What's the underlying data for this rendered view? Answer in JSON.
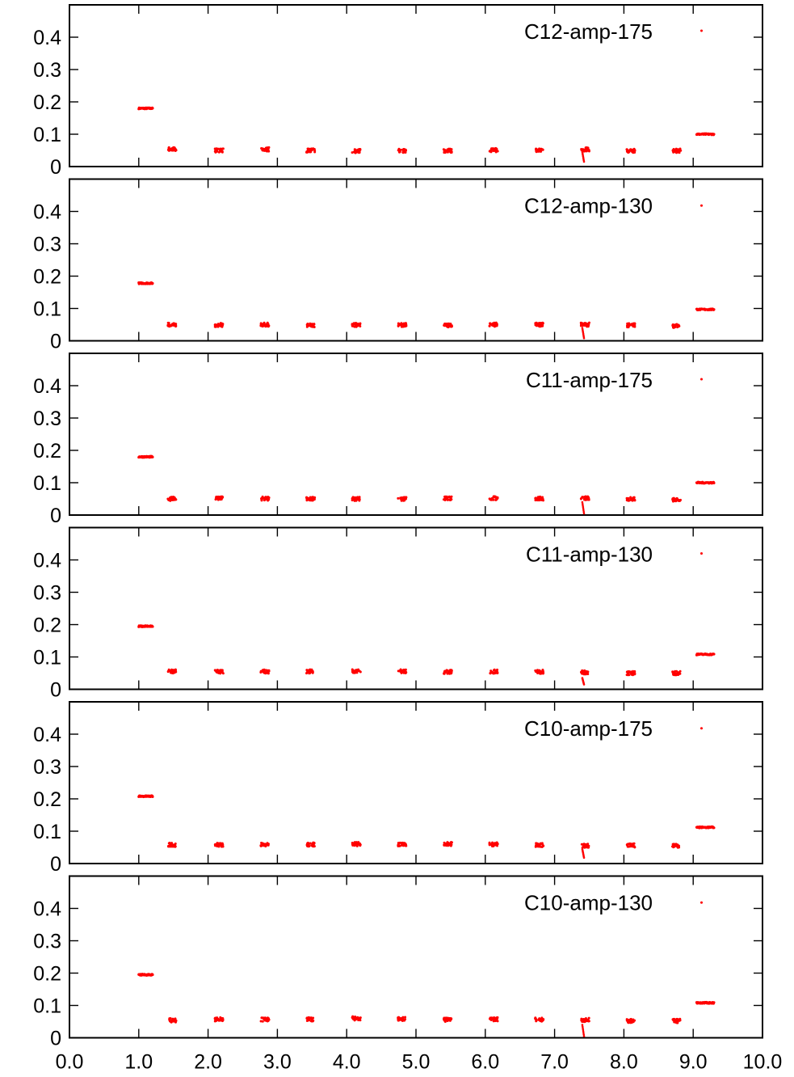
{
  "chart_data": [
    {
      "type": "scatter",
      "label": "C12-amp-175",
      "xlim": [
        0,
        10
      ],
      "ylim": [
        0,
        0.5
      ],
      "yticks": [
        0,
        0.1,
        0.2,
        0.3,
        0.4
      ],
      "ytick_labels": [
        "0",
        "0.1",
        "0.2",
        "0.3",
        "0.4"
      ],
      "marker_color": "#ff0000",
      "clusters": [
        {
          "x_start": 1.0,
          "x_end": 1.2,
          "y": 0.18
        },
        {
          "x": 1.48,
          "y": 0.054
        },
        {
          "x": 2.16,
          "y": 0.05
        },
        {
          "x": 2.82,
          "y": 0.053
        },
        {
          "x": 3.48,
          "y": 0.05
        },
        {
          "x": 4.14,
          "y": 0.048
        },
        {
          "x": 4.8,
          "y": 0.049
        },
        {
          "x": 5.46,
          "y": 0.049
        },
        {
          "x": 6.12,
          "y": 0.051
        },
        {
          "x": 6.78,
          "y": 0.051
        },
        {
          "x": 7.44,
          "y": 0.053
        },
        {
          "x": 8.1,
          "y": 0.049
        },
        {
          "x": 8.76,
          "y": 0.049
        },
        {
          "x_start": 9.05,
          "x_end": 9.3,
          "y": 0.1
        }
      ],
      "drop": {
        "x": 7.4,
        "y_from": 0.045,
        "y_to": 0.015
      },
      "outlier": {
        "x": 9.12,
        "y": 0.42
      }
    },
    {
      "type": "scatter",
      "label": "C12-amp-130",
      "xlim": [
        0,
        10
      ],
      "ylim": [
        0,
        0.5
      ],
      "yticks": [
        0,
        0.1,
        0.2,
        0.3,
        0.4
      ],
      "ytick_labels": [
        "0",
        "0.1",
        "0.2",
        "0.3",
        "0.4"
      ],
      "marker_color": "#ff0000",
      "clusters": [
        {
          "x_start": 1.0,
          "x_end": 1.2,
          "y": 0.178
        },
        {
          "x": 1.48,
          "y": 0.05
        },
        {
          "x": 2.16,
          "y": 0.049
        },
        {
          "x": 2.82,
          "y": 0.05
        },
        {
          "x": 3.48,
          "y": 0.048
        },
        {
          "x": 4.14,
          "y": 0.049
        },
        {
          "x": 4.8,
          "y": 0.049
        },
        {
          "x": 5.46,
          "y": 0.048
        },
        {
          "x": 6.12,
          "y": 0.05
        },
        {
          "x": 6.78,
          "y": 0.05
        },
        {
          "x": 7.44,
          "y": 0.05
        },
        {
          "x": 8.1,
          "y": 0.048
        },
        {
          "x": 8.76,
          "y": 0.046
        },
        {
          "x_start": 9.05,
          "x_end": 9.3,
          "y": 0.097
        }
      ],
      "drop": {
        "x": 7.4,
        "y_from": 0.04,
        "y_to": 0.008
      },
      "outlier": {
        "x": 9.12,
        "y": 0.418
      }
    },
    {
      "type": "scatter",
      "label": "C11-amp-175",
      "xlim": [
        0,
        10
      ],
      "ylim": [
        0,
        0.5
      ],
      "yticks": [
        0,
        0.1,
        0.2,
        0.3,
        0.4
      ],
      "ytick_labels": [
        "0",
        "0.1",
        "0.2",
        "0.3",
        "0.4"
      ],
      "marker_color": "#ff0000",
      "clusters": [
        {
          "x_start": 1.0,
          "x_end": 1.2,
          "y": 0.18
        },
        {
          "x": 1.48,
          "y": 0.05
        },
        {
          "x": 2.16,
          "y": 0.052
        },
        {
          "x": 2.82,
          "y": 0.051
        },
        {
          "x": 3.48,
          "y": 0.05
        },
        {
          "x": 4.14,
          "y": 0.05
        },
        {
          "x": 4.8,
          "y": 0.05
        },
        {
          "x": 5.46,
          "y": 0.052
        },
        {
          "x": 6.12,
          "y": 0.052
        },
        {
          "x": 6.78,
          "y": 0.051
        },
        {
          "x": 7.44,
          "y": 0.052
        },
        {
          "x": 8.1,
          "y": 0.049
        },
        {
          "x": 8.76,
          "y": 0.048
        },
        {
          "x_start": 9.05,
          "x_end": 9.3,
          "y": 0.1
        }
      ],
      "drop": {
        "x": 7.4,
        "y_from": 0.04,
        "y_to": 0.005
      },
      "outlier": {
        "x": 9.12,
        "y": 0.42
      }
    },
    {
      "type": "scatter",
      "label": "C11-amp-130",
      "xlim": [
        0,
        10
      ],
      "ylim": [
        0,
        0.5
      ],
      "yticks": [
        0,
        0.1,
        0.2,
        0.3,
        0.4
      ],
      "ytick_labels": [
        "0",
        "0.1",
        "0.2",
        "0.3",
        "0.4"
      ],
      "marker_color": "#ff0000",
      "clusters": [
        {
          "x_start": 1.0,
          "x_end": 1.2,
          "y": 0.195
        },
        {
          "x": 1.48,
          "y": 0.055
        },
        {
          "x": 2.16,
          "y": 0.054
        },
        {
          "x": 2.82,
          "y": 0.055
        },
        {
          "x": 3.48,
          "y": 0.055
        },
        {
          "x": 4.14,
          "y": 0.056
        },
        {
          "x": 4.8,
          "y": 0.056
        },
        {
          "x": 5.46,
          "y": 0.054
        },
        {
          "x": 6.12,
          "y": 0.055
        },
        {
          "x": 6.78,
          "y": 0.054
        },
        {
          "x": 7.44,
          "y": 0.052
        },
        {
          "x": 8.1,
          "y": 0.05
        },
        {
          "x": 8.76,
          "y": 0.05
        },
        {
          "x_start": 9.05,
          "x_end": 9.3,
          "y": 0.108
        }
      ],
      "drop": {
        "x": 7.4,
        "y_from": 0.035,
        "y_to": 0.015
      },
      "outlier": {
        "x": 9.12,
        "y": 0.42
      }
    },
    {
      "type": "scatter",
      "label": "C10-amp-175",
      "xlim": [
        0,
        10
      ],
      "ylim": [
        0,
        0.5
      ],
      "yticks": [
        0,
        0.1,
        0.2,
        0.3,
        0.4
      ],
      "ytick_labels": [
        "0",
        "0.1",
        "0.2",
        "0.3",
        "0.4"
      ],
      "marker_color": "#ff0000",
      "clusters": [
        {
          "x_start": 1.0,
          "x_end": 1.2,
          "y": 0.208
        },
        {
          "x": 1.48,
          "y": 0.058
        },
        {
          "x": 2.16,
          "y": 0.058
        },
        {
          "x": 2.82,
          "y": 0.058
        },
        {
          "x": 3.48,
          "y": 0.059
        },
        {
          "x": 4.14,
          "y": 0.06
        },
        {
          "x": 4.8,
          "y": 0.059
        },
        {
          "x": 5.46,
          "y": 0.06
        },
        {
          "x": 6.12,
          "y": 0.059
        },
        {
          "x": 6.78,
          "y": 0.057
        },
        {
          "x": 7.44,
          "y": 0.055
        },
        {
          "x": 8.1,
          "y": 0.056
        },
        {
          "x": 8.76,
          "y": 0.055
        },
        {
          "x_start": 9.05,
          "x_end": 9.3,
          "y": 0.112
        }
      ],
      "drop": {
        "x": 7.4,
        "y_from": 0.045,
        "y_to": 0.018
      },
      "outlier": {
        "x": 9.12,
        "y": 0.418
      }
    },
    {
      "type": "scatter",
      "label": "C10-amp-130",
      "xlim": [
        0,
        10
      ],
      "ylim": [
        0,
        0.5
      ],
      "yticks": [
        0,
        0.1,
        0.2,
        0.3,
        0.4
      ],
      "ytick_labels": [
        "0",
        "0.1",
        "0.2",
        "0.3",
        "0.4"
      ],
      "xticks": [
        0,
        1,
        2,
        3,
        4,
        5,
        6,
        7,
        8,
        9,
        10
      ],
      "xtick_labels": [
        "0.0",
        "1.0",
        "2.0",
        "3.0",
        "4.0",
        "5.0",
        "6.0",
        "7.0",
        "8.0",
        "9.0",
        "10.0"
      ],
      "marker_color": "#ff0000",
      "clusters": [
        {
          "x_start": 1.0,
          "x_end": 1.2,
          "y": 0.195
        },
        {
          "x": 1.48,
          "y": 0.054
        },
        {
          "x": 2.16,
          "y": 0.057
        },
        {
          "x": 2.82,
          "y": 0.056
        },
        {
          "x": 3.48,
          "y": 0.057
        },
        {
          "x": 4.14,
          "y": 0.06
        },
        {
          "x": 4.8,
          "y": 0.058
        },
        {
          "x": 5.46,
          "y": 0.056
        },
        {
          "x": 6.12,
          "y": 0.057
        },
        {
          "x": 6.78,
          "y": 0.056
        },
        {
          "x": 7.44,
          "y": 0.055
        },
        {
          "x": 8.1,
          "y": 0.052
        },
        {
          "x": 8.76,
          "y": 0.052
        },
        {
          "x_start": 9.05,
          "x_end": 9.3,
          "y": 0.108
        }
      ],
      "drop": {
        "x": 7.4,
        "y_from": 0.04,
        "y_to": 0.005
      },
      "outlier": {
        "x": 9.12,
        "y": 0.418
      }
    }
  ]
}
